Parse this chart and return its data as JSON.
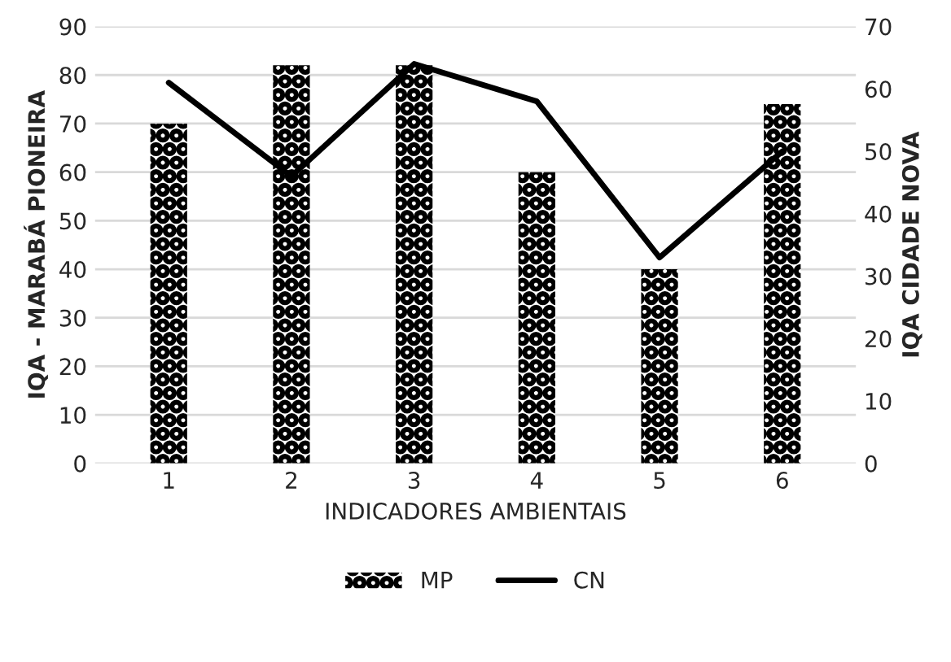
{
  "chart_data": {
    "type": "bar",
    "xlabel": "INDICADORES AMBIENTAIS",
    "ylabel": "IQA - MARABÁ PIONEIRA",
    "y2label": "IQA CIDADE NOVA",
    "categories": [
      "1",
      "2",
      "3",
      "4",
      "5",
      "6"
    ],
    "series": [
      {
        "name": "MP",
        "color": "#000000",
        "values": [
          70,
          82,
          82,
          60,
          40,
          74
        ]
      },
      {
        "name": "CN",
        "type": "line",
        "axis": "y2",
        "color": "#000000",
        "values": [
          61,
          46,
          64,
          58,
          33,
          50
        ]
      }
    ],
    "ylim": [
      0,
      90
    ],
    "yticks": [
      0,
      10,
      20,
      30,
      40,
      50,
      60,
      70,
      80,
      90
    ],
    "y2lim": [
      0,
      70
    ],
    "y2ticks": [
      0,
      10,
      20,
      30,
      40,
      50,
      60,
      70
    ],
    "grid": "y",
    "legend": "bottom",
    "marker": "none",
    "line_style": "solid"
  }
}
